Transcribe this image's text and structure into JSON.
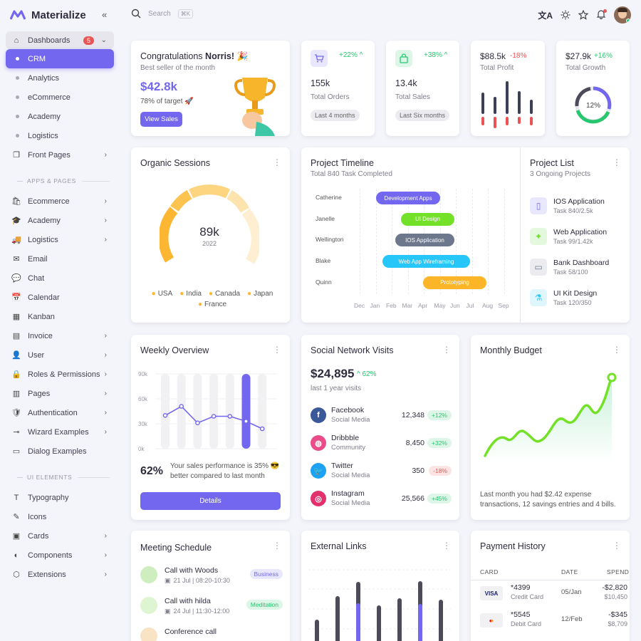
{
  "brand": {
    "name": "Materialize"
  },
  "nav": {
    "dashboards": "Dashboards",
    "dash_badge": "5",
    "sub": [
      "CRM",
      "Analytics",
      "eCommerce",
      "Academy",
      "Logistics"
    ],
    "front_pages": "Front Pages",
    "apps_section": "APPS & PAGES",
    "apps": [
      "Ecommerce",
      "Academy",
      "Logistics",
      "Email",
      "Chat",
      "Calendar",
      "Kanban",
      "Invoice",
      "User",
      "Roles & Permissions",
      "Pages",
      "Authentication",
      "Wizard Examples",
      "Dialog Examples"
    ],
    "ui_section": "UI ELEMENTS",
    "ui": [
      "Typography",
      "Icons",
      "Cards",
      "Components",
      "Extensions"
    ]
  },
  "topbar": {
    "search_placeholder": "Search",
    "shortcut": "⌘K"
  },
  "congrats": {
    "title": "Congratulations",
    "name": "Norris!",
    "emoji": "🎉",
    "subtitle": "Best seller of the month",
    "amount": "$42.8k",
    "target": "78% of target 🚀",
    "button": "View Sales"
  },
  "orders": {
    "change": "+22%",
    "value": "155k",
    "label": "Total Orders",
    "chip": "Last 4 months"
  },
  "sales": {
    "change": "+38%",
    "value": "13.4k",
    "label": "Total Sales",
    "chip": "Last Six months"
  },
  "profit": {
    "value": "$88.5k",
    "change": "-18%",
    "label": "Total Profit"
  },
  "growth": {
    "value": "$27.9k",
    "change": "+16%",
    "label": "Total Growth",
    "percent": "12%"
  },
  "organic": {
    "title": "Organic Sessions",
    "value": "89k",
    "year": "2022",
    "legend": [
      "USA",
      "India",
      "Canada",
      "Japan",
      "France"
    ]
  },
  "timeline": {
    "title": "Project Timeline",
    "subtitle": "Total 840 Task Completed",
    "people": [
      "Catherine",
      "Janelle",
      "Wellington",
      "Blake",
      "Quinn"
    ],
    "bars": [
      "Development Apps",
      "UI Design",
      "IOS Application",
      "Web App Wireframing",
      "Prototyping"
    ],
    "months": [
      "Dec",
      "Jan",
      "Feb",
      "Mar",
      "Apr",
      "May",
      "Jun",
      "Jul",
      "Aug",
      "Sep"
    ]
  },
  "projects": {
    "title": "Project List",
    "subtitle": "3 Ongoing Projects",
    "items": [
      {
        "name": "IOS Application",
        "task": "Task 840/2.5k"
      },
      {
        "name": "Web Application",
        "task": "Task 99/1.42k"
      },
      {
        "name": "Bank Dashboard",
        "task": "Task 58/100"
      },
      {
        "name": "UI Kit Design",
        "task": "Task 120/350"
      }
    ]
  },
  "weekly": {
    "title": "Weekly Overview",
    "yticks": [
      "90k",
      "60k",
      "30k",
      "0k"
    ],
    "percent": "62%",
    "text1": "Your sales performance is 35% 😎",
    "text2": "better compared to last month",
    "button": "Details"
  },
  "social": {
    "title": "Social Network Visits",
    "amount": "$24,895",
    "change": "62%",
    "subtitle": "last 1 year visits",
    "items": [
      {
        "name": "Facebook",
        "type": "Social Media",
        "value": "12,348",
        "change": "+12%"
      },
      {
        "name": "Dribbble",
        "type": "Community",
        "value": "8,450",
        "change": "+32%"
      },
      {
        "name": "Twitter",
        "type": "Social Media",
        "value": "350",
        "change": "-18%"
      },
      {
        "name": "Instagram",
        "type": "Social Media",
        "value": "25,566",
        "change": "+45%"
      }
    ]
  },
  "budget": {
    "title": "Monthly Budget",
    "text": "Last month you had $2.42 expense transactions, 12 savings entries and 4 bills."
  },
  "meeting": {
    "title": "Meeting Schedule",
    "items": [
      {
        "title": "Call with Woods",
        "time": "21 Jul | 08:20-10:30",
        "tag": "Business"
      },
      {
        "title": "Call with hilda",
        "time": "24 Jul | 11:30-12:00",
        "tag": "Meditation"
      },
      {
        "title": "Conference call",
        "time": "",
        "tag": ""
      }
    ]
  },
  "external": {
    "title": "External Links"
  },
  "payment": {
    "title": "Payment History",
    "cols": [
      "CARD",
      "DATE",
      "SPEND"
    ],
    "rows": [
      {
        "num": "*4399",
        "type": "Credit Card",
        "date": "05/Jan",
        "spend": "-$2,820",
        "balance": "$10,450"
      },
      {
        "num": "*5545",
        "type": "Debit Card",
        "date": "12/Feb",
        "spend": "-$345",
        "balance": "$8,709"
      }
    ]
  },
  "colors": {
    "primary": "#7367f0",
    "success": "#28c76f",
    "danger": "#ea5455",
    "warning": "#ff9f43",
    "info": "#00bad1"
  },
  "chart_data": [
    {
      "type": "bar",
      "title": "Total Profit",
      "values": []
    },
    {
      "type": "pie",
      "title": "Total Growth",
      "values": [
        12,
        88
      ]
    },
    {
      "type": "bar",
      "title": "Weekly Overview",
      "ylim": [
        0,
        90
      ],
      "yticks": [
        "90k",
        "60k",
        "30k",
        "0k"
      ],
      "series": [
        {
          "values": [
            40,
            51,
            31,
            39,
            39,
            33,
            24
          ]
        }
      ]
    },
    {
      "type": "line",
      "title": "Monthly Budget",
      "values": []
    }
  ]
}
